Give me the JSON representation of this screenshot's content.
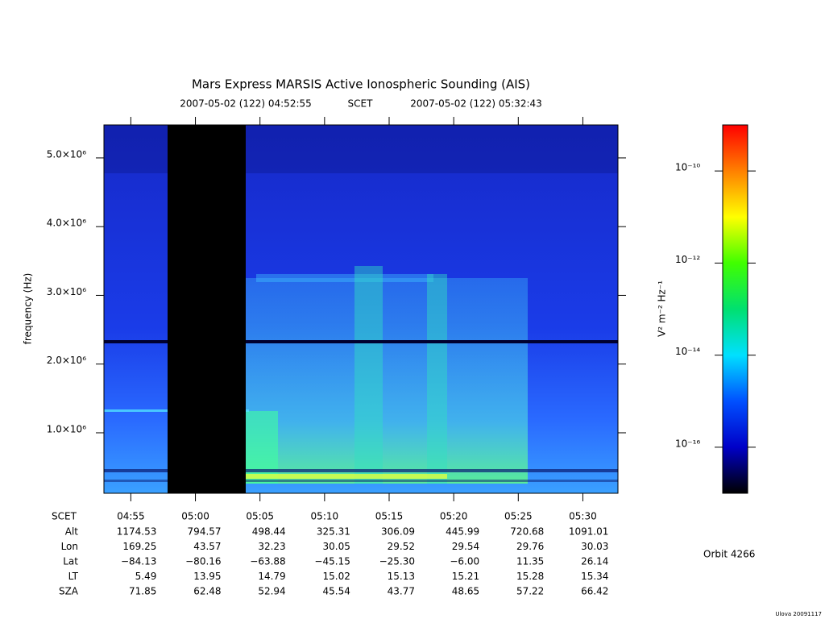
{
  "chart_data": {
    "type": "spectrogram",
    "title": "Mars Express MARSIS Active Ionospheric Sounding (AIS)",
    "subtitle": [
      "2007-05-02 (122) 04:52:55",
      "SCET",
      "2007-05-02 (122) 05:32:43"
    ],
    "ylabel": "frequency (Hz)",
    "xlim": [
      "04:52:55",
      "05:32:43"
    ],
    "x": [
      "04:55",
      "05:00",
      "05:05",
      "05:10",
      "05:15",
      "05:20",
      "05:25",
      "05:30"
    ],
    "ylim": [
      120000,
      5480000
    ],
    "yticks": [
      {
        "value": 1000000,
        "label": "1.0×10⁶"
      },
      {
        "value": 2000000,
        "label": "2.0×10⁶"
      },
      {
        "value": 3000000,
        "label": "3.0×10⁶"
      },
      {
        "value": 4000000,
        "label": "4.0×10⁶"
      },
      {
        "value": 5000000,
        "label": "5.0×10⁶"
      }
    ],
    "colorbar": {
      "label": "V² m⁻² Hz⁻¹",
      "log_scale": true,
      "lim": [
        1e-17,
        1e-09
      ],
      "ticks": [
        {
          "value": 1e-16,
          "label": "10⁻¹⁶"
        },
        {
          "value": 1e-14,
          "label": "10⁻¹⁴"
        },
        {
          "value": 1e-12,
          "label": "10⁻¹²"
        },
        {
          "value": 1e-10,
          "label": "10⁻¹⁰"
        }
      ],
      "colors": [
        "#000000",
        "#0000c8",
        "#0050ff",
        "#00e0ff",
        "#00e070",
        "#40ff00",
        "#ffff00",
        "#ff8000",
        "#ff0000"
      ]
    },
    "table": {
      "x_label": "SCET",
      "rows": [
        {
          "label": "Alt",
          "values": [
            "1174.53",
            "794.57",
            "498.44",
            "325.31",
            "306.09",
            "445.99",
            "720.68",
            "1091.01"
          ]
        },
        {
          "label": "Lon",
          "values": [
            "169.25",
            "43.57",
            "32.23",
            "30.05",
            "29.52",
            "29.54",
            "29.76",
            "30.03"
          ]
        },
        {
          "label": "Lat",
          "values": [
            "−84.13",
            "−80.16",
            "−63.88",
            "−45.15",
            "−25.30",
            "−6.00",
            "11.35",
            "26.14"
          ]
        },
        {
          "label": "LT",
          "values": [
            "5.49",
            "13.95",
            "14.79",
            "15.02",
            "15.13",
            "15.21",
            "15.28",
            "15.34"
          ]
        },
        {
          "label": "SZA",
          "values": [
            "71.85",
            "62.48",
            "52.94",
            "45.54",
            "43.77",
            "48.65",
            "57.22",
            "66.42"
          ]
        }
      ]
    },
    "orbit": "Orbit 4266",
    "footer": "Ulova 20091117"
  }
}
